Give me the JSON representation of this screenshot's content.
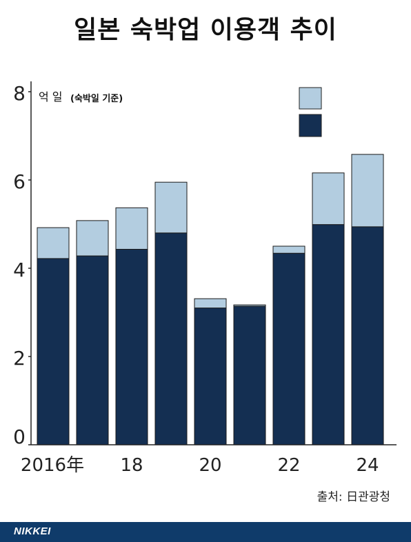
{
  "title": "일본 숙박업 이용객 추이",
  "source": "출처: 日관광청",
  "brand": "NIKKEI",
  "colors": {
    "dark": "#142f52",
    "light": "#b3cde0",
    "footer": "#0f3b6a"
  },
  "chart_data": {
    "type": "bar",
    "stacked": true,
    "categories": [
      "2016",
      "2017",
      "2018",
      "2019",
      "2020",
      "2021",
      "2022",
      "2023",
      "2024"
    ],
    "x_tick_labels": [
      "2016年",
      "",
      "18",
      "",
      "20",
      "",
      "22",
      "",
      "24"
    ],
    "y_unit_label": "억 일",
    "y_unit_note": "(숙박일 기준)",
    "ylim": [
      0,
      8
    ],
    "yticks": [
      0,
      2,
      4,
      6,
      8
    ],
    "series": [
      {
        "values": [
          4.22,
          4.28,
          4.43,
          4.8,
          3.1,
          3.14,
          4.34,
          4.99,
          4.94
        ]
      },
      {
        "values": [
          0.7,
          0.8,
          0.94,
          1.15,
          0.21,
          0.03,
          0.16,
          1.17,
          1.64
        ]
      }
    ],
    "legend": "top-right",
    "grid": false
  }
}
